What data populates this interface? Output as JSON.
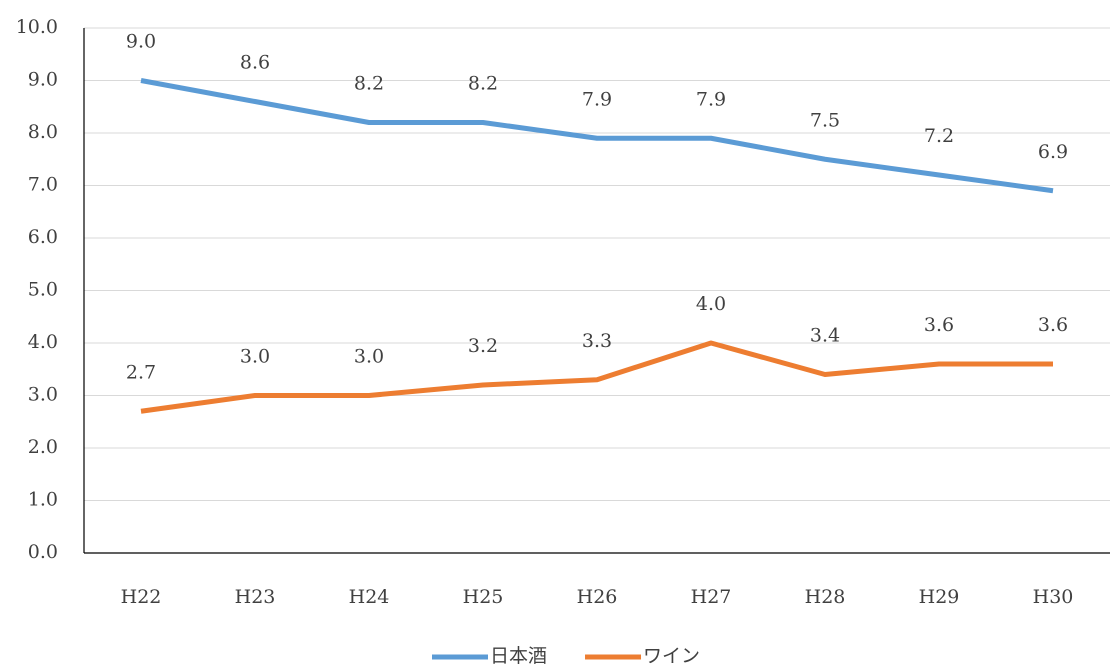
{
  "chart_data": {
    "type": "line",
    "categories": [
      "H22",
      "H23",
      "H24",
      "H25",
      "H26",
      "H27",
      "H28",
      "H29",
      "H30"
    ],
    "series": [
      {
        "name": "日本酒",
        "color": "#5b9bd5",
        "values": [
          9.0,
          8.6,
          8.2,
          8.2,
          7.9,
          7.9,
          7.5,
          7.2,
          6.9
        ],
        "value_labels": [
          "9.0",
          "8.6",
          "8.2",
          "8.2",
          "7.9",
          "7.9",
          "7.5",
          "7.2",
          "6.9"
        ]
      },
      {
        "name": "ワイン",
        "color": "#ed7d31",
        "values": [
          2.7,
          3.0,
          3.0,
          3.2,
          3.3,
          4.0,
          3.4,
          3.6,
          3.6
        ],
        "value_labels": [
          "2.7",
          "3.0",
          "3.0",
          "3.2",
          "3.3",
          "4.0",
          "3.4",
          "3.6",
          "3.6"
        ]
      }
    ],
    "ylim": [
      0,
      10
    ],
    "yticks": [
      {
        "value": 0,
        "label": "0.0"
      },
      {
        "value": 1,
        "label": "1.0"
      },
      {
        "value": 2,
        "label": "2.0"
      },
      {
        "value": 3,
        "label": "3.0"
      },
      {
        "value": 4,
        "label": "4.0"
      },
      {
        "value": 5,
        "label": "5.0"
      },
      {
        "value": 6,
        "label": "6.0"
      },
      {
        "value": 7,
        "label": "7.0"
      },
      {
        "value": 8,
        "label": "8.0"
      },
      {
        "value": 9,
        "label": "9.0"
      },
      {
        "value": 10,
        "label": "10.0"
      }
    ],
    "grid": true,
    "legend": "bottom"
  }
}
